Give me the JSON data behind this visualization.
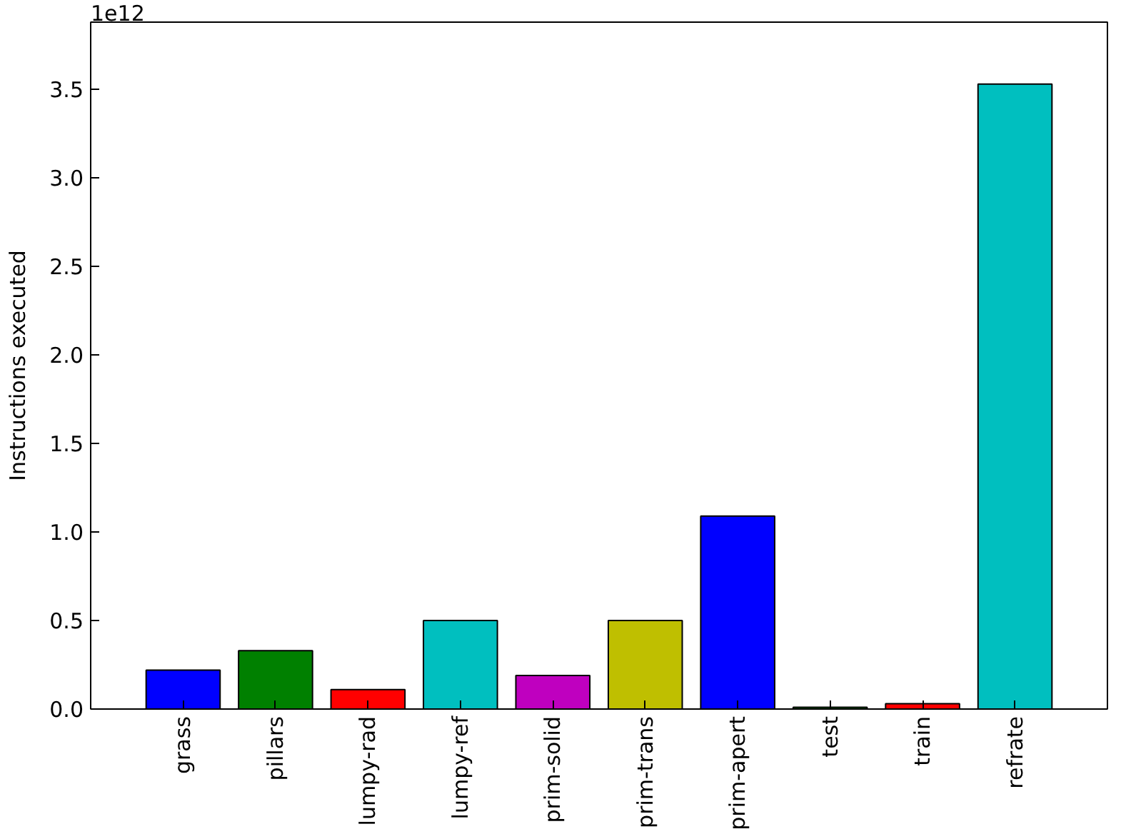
{
  "chart_data": {
    "type": "bar",
    "categories": [
      "grass",
      "pillars",
      "lumpy-rad",
      "lumpy-ref",
      "prim-solid",
      "prim-trans",
      "prim-apert",
      "test",
      "train",
      "refrate"
    ],
    "values": [
      0.22,
      0.33,
      0.11,
      0.5,
      0.19,
      0.5,
      1.09,
      0.01,
      0.03,
      3.53
    ],
    "colors": [
      "#0000ff",
      "#008000",
      "#ff0000",
      "#00bfbf",
      "#bf00bf",
      "#bfbf00",
      "#0000ff",
      "#008000",
      "#ff0000",
      "#00bfbf"
    ],
    "ylabel": "Instructions executed",
    "ylim": [
      0,
      3.88
    ],
    "yticks": [
      {
        "value": 0,
        "label": "0.0"
      },
      {
        "value": 0.5,
        "label": "0.5"
      },
      {
        "value": 1,
        "label": "1.0"
      },
      {
        "value": 1.5,
        "label": "1.5"
      },
      {
        "value": 2,
        "label": "2.0"
      },
      {
        "value": 2.5,
        "label": "2.5"
      },
      {
        "value": 3,
        "label": "3.0"
      },
      {
        "value": 3.5,
        "label": "3.5"
      }
    ],
    "annotations": [
      "1e12"
    ]
  }
}
